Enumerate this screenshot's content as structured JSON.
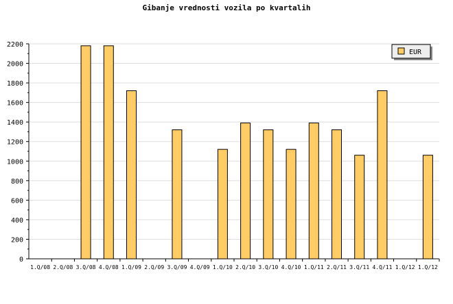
{
  "chart_data": {
    "type": "bar",
    "title": "Gibanje vrednosti vozila po kvartalih",
    "xlabel": "",
    "ylabel": "",
    "ylim": [
      0,
      2200
    ],
    "yticks": [
      0,
      200,
      400,
      600,
      800,
      1000,
      1200,
      1400,
      1600,
      1800,
      2000,
      2200
    ],
    "grid": true,
    "legend_position": "top-right",
    "categories": [
      "1.Q/08",
      "2.Q/08",
      "3.Q/08",
      "4.Q/08",
      "1.Q/09",
      "2.Q/09",
      "3.Q/09",
      "4.Q/09",
      "1.Q/10",
      "2.Q/10",
      "3.Q/10",
      "4.Q/10",
      "1.Q/11",
      "2.Q/11",
      "3.Q/11",
      "4.Q/11",
      "1.Q/12",
      "1.Q/12"
    ],
    "series": [
      {
        "name": "EUR",
        "color": "#ffcc66",
        "values": [
          0,
          0,
          2180,
          2180,
          1720,
          0,
          1320,
          0,
          1120,
          1390,
          1320,
          1120,
          1390,
          1320,
          1060,
          1720,
          0,
          1060
        ]
      }
    ]
  }
}
